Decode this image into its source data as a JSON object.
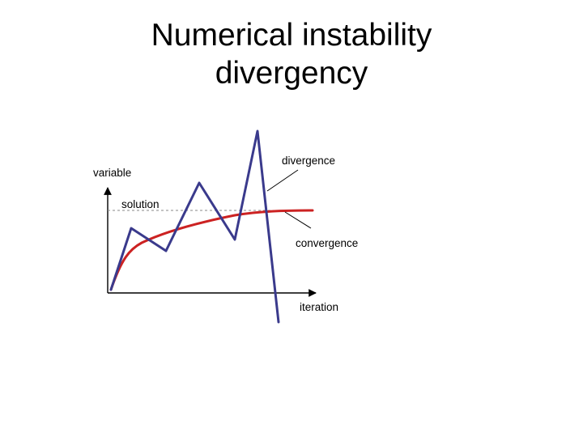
{
  "slide": {
    "title_line1": "Numerical instability",
    "title_line2": "divergency"
  },
  "diagram": {
    "labels": {
      "y_axis": "variable",
      "x_axis": "iteration",
      "solution": "solution",
      "divergence": "divergence",
      "convergence": "convergence"
    },
    "colors": {
      "axis": "#000000",
      "solution_curve": "#cc2222",
      "iteration_path": "#3a3a8c",
      "leader_lines": "#000000"
    }
  }
}
